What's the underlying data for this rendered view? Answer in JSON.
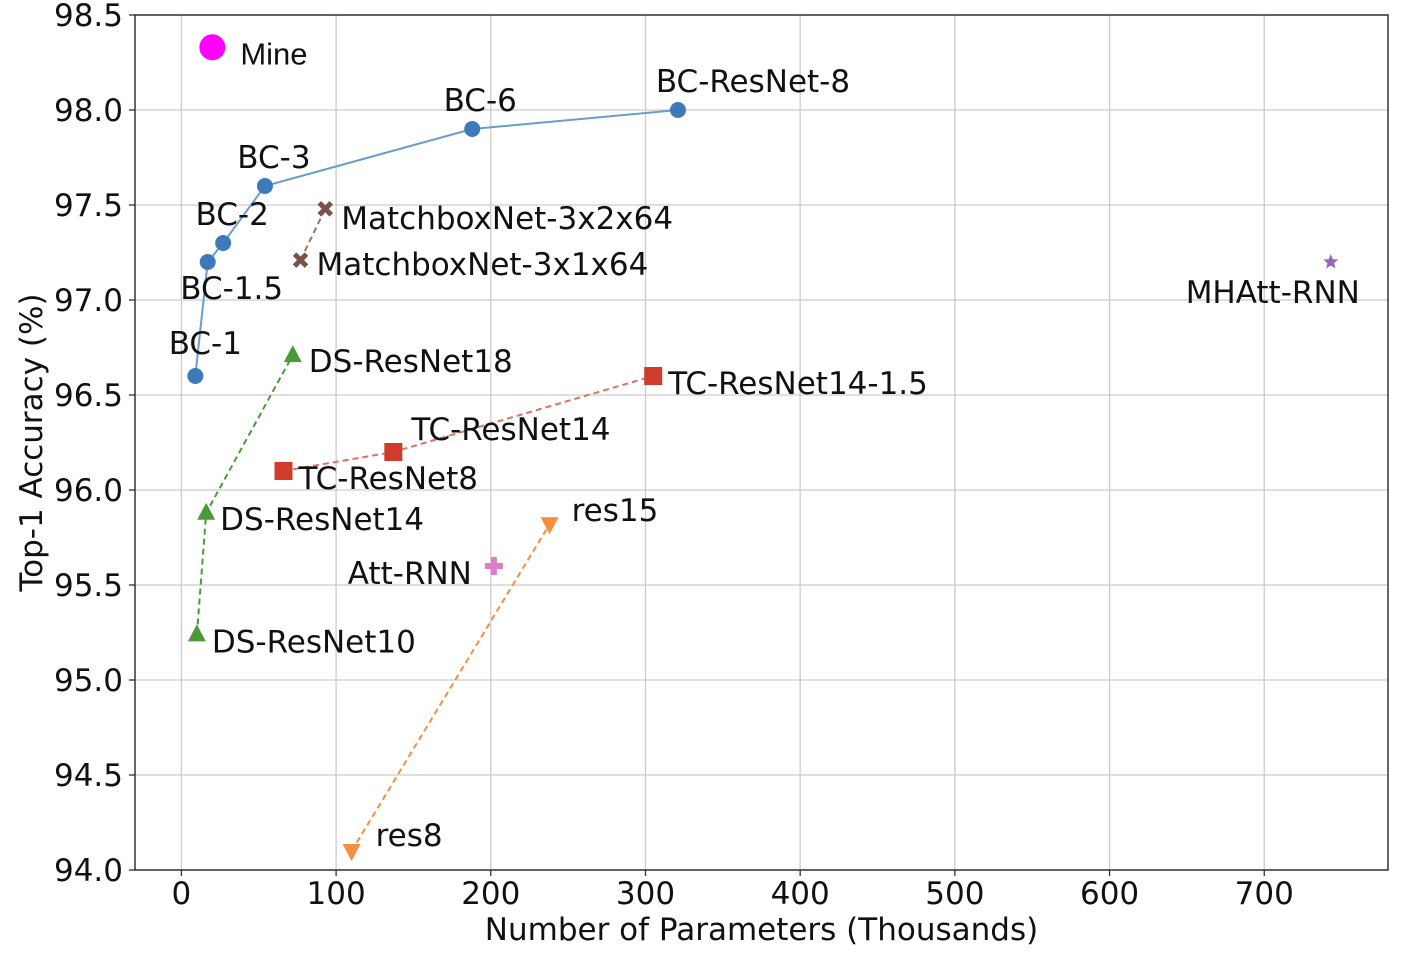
{
  "chart_data": {
    "type": "scatter",
    "title": "",
    "xlabel": "Number of Parameters (Thousands)",
    "ylabel": "Top-1 Accuracy (%)",
    "xlim": [
      -30,
      780
    ],
    "ylim": [
      94.0,
      98.5
    ],
    "xticks": [
      0,
      100,
      200,
      300,
      400,
      500,
      600,
      700
    ],
    "xtick_labels": [
      "0",
      "100",
      "200",
      "300",
      "400",
      "500",
      "600",
      "700"
    ],
    "yticks": [
      94.0,
      94.5,
      95.0,
      95.5,
      96.0,
      96.5,
      97.0,
      97.5,
      98.0,
      98.5
    ],
    "ytick_labels": [
      "94.0",
      "94.5",
      "95.0",
      "95.5",
      "96.0",
      "96.5",
      "97.0",
      "97.5",
      "98.0",
      "98.5"
    ],
    "grid": true,
    "series": [
      {
        "key": "bc",
        "color": "#3e7ab9",
        "line_color": "#6b9ccc",
        "line_style": "solid",
        "marker": "circle",
        "points": [
          {
            "x": 9,
            "y": 96.6,
            "label": "BC-1"
          },
          {
            "x": 17,
            "y": 97.2,
            "label": "BC-1.5"
          },
          {
            "x": 27,
            "y": 97.3,
            "label": "BC-2"
          },
          {
            "x": 54,
            "y": 97.6,
            "label": "BC-3"
          },
          {
            "x": 188,
            "y": 97.9,
            "label": "BC-6"
          },
          {
            "x": 321,
            "y": 98.0,
            "label": "BC-ResNet-8"
          }
        ]
      },
      {
        "key": "matchbox",
        "color": "#7a5247",
        "line_color": "#9a7368",
        "line_style": "dashed",
        "marker": "x",
        "points": [
          {
            "x": 77,
            "y": 97.21,
            "label": "MatchboxNet-3x1x64"
          },
          {
            "x": 93,
            "y": 97.48,
            "label": "MatchboxNet-3x2x64"
          }
        ]
      },
      {
        "key": "mhatt",
        "color": "#9467bd",
        "line_color": "#9467bd",
        "line_style": "none",
        "marker": "star",
        "points": [
          {
            "x": 743,
            "y": 97.2,
            "label": "MHAtt-RNN"
          }
        ]
      },
      {
        "key": "ds",
        "color": "#4a9a3c",
        "line_color": "#4a9a3c",
        "line_style": "dashed",
        "marker": "triangle-up",
        "points": [
          {
            "x": 10,
            "y": 95.24,
            "label": "DS-ResNet10"
          },
          {
            "x": 16,
            "y": 95.88,
            "label": "DS-ResNet14"
          },
          {
            "x": 72,
            "y": 96.71,
            "label": "DS-ResNet18"
          }
        ]
      },
      {
        "key": "tc",
        "color": "#d03b2d",
        "line_color": "#e07060",
        "line_style": "dashed",
        "marker": "square",
        "points": [
          {
            "x": 66,
            "y": 96.1,
            "label": "TC-ResNet8"
          },
          {
            "x": 137,
            "y": 96.2,
            "label": "TC-ResNet14"
          },
          {
            "x": 305,
            "y": 96.6,
            "label": "TC-ResNet14-1.5"
          }
        ]
      },
      {
        "key": "res",
        "color": "#f38f3f",
        "line_color": "#f38f3f",
        "line_style": "dashed",
        "marker": "triangle-down",
        "points": [
          {
            "x": 110,
            "y": 94.1,
            "label": "res8"
          },
          {
            "x": 238,
            "y": 95.82,
            "label": "res15"
          }
        ]
      },
      {
        "key": "attrnn",
        "color": "#dc7fc8",
        "line_color": "#dc7fc8",
        "line_style": "none",
        "marker": "plus",
        "points": [
          {
            "x": 202,
            "y": 95.6,
            "label": "Att-RNN"
          }
        ]
      },
      {
        "key": "mine",
        "color": "#ff00ff",
        "line_color": "#ff00ff",
        "line_style": "none",
        "marker": "big-circle",
        "points": [
          {
            "x": 20,
            "y": 98.33,
            "label": "Mine"
          }
        ]
      }
    ]
  }
}
